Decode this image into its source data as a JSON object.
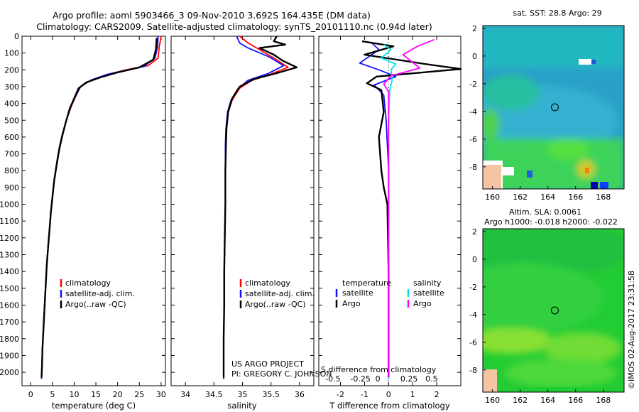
{
  "header": {
    "line1": "Argo profile: aoml 5903466_3 09-Nov-2010 3.692S 164.435E (DM data)",
    "line2": "Climatology: CARS2009. Satellite-adjusted climatology: synTS_20101110.nc (0.94d later)"
  },
  "colors": {
    "climatology": "#ff0000",
    "satellite": "#1010ff",
    "argo": "#000000",
    "sal_satellite": "#00e0f0",
    "sal_argo": "#ff00ff"
  },
  "chart_data": [
    {
      "id": "temperature",
      "type": "line",
      "xlabel": "temperature (deg C)",
      "ylabel": "",
      "xlim": [
        -2,
        31
      ],
      "ylim": [
        2080,
        0
      ],
      "xticks": [
        0,
        5,
        10,
        15,
        20,
        25,
        30
      ],
      "yticks": [
        0,
        100,
        200,
        300,
        400,
        500,
        600,
        700,
        800,
        900,
        1000,
        1100,
        1200,
        1300,
        1400,
        1500,
        1600,
        1700,
        1800,
        1900,
        2000
      ],
      "legend": [
        "climatology",
        "satellite-adj. clim.",
        "Argo(..raw -QC)"
      ],
      "series": [
        {
          "name": "climatology",
          "color": "red",
          "points": [
            [
              30,
              0
            ],
            [
              29.6,
              60
            ],
            [
              29.3,
              130
            ],
            [
              27,
              175
            ],
            [
              22,
              200
            ],
            [
              18,
              225
            ],
            [
              14,
              260
            ],
            [
              11.5,
              300
            ],
            [
              10.3,
              360
            ],
            [
              9.3,
              420
            ],
            [
              8.2,
              500
            ],
            [
              7.3,
              580
            ],
            [
              6.6,
              660
            ],
            [
              6.0,
              750
            ],
            [
              5.4,
              850
            ],
            [
              5.0,
              950
            ],
            [
              4.6,
              1050
            ],
            [
              4.3,
              1150
            ],
            [
              4.0,
              1250
            ],
            [
              3.7,
              1350
            ],
            [
              3.5,
              1450
            ],
            [
              3.3,
              1550
            ],
            [
              3.1,
              1650
            ],
            [
              2.9,
              1750
            ],
            [
              2.7,
              1850
            ],
            [
              2.6,
              1950
            ],
            [
              2.5,
              2040
            ]
          ]
        },
        {
          "name": "satellite-adj. clim.",
          "color": "blue",
          "points": [
            [
              29.3,
              0
            ],
            [
              29.2,
              60
            ],
            [
              28.6,
              130
            ],
            [
              26,
              180
            ],
            [
              21.5,
              205
            ],
            [
              17.5,
              228
            ],
            [
              13.8,
              262
            ],
            [
              11.4,
              302
            ],
            [
              10.2,
              362
            ],
            [
              9.2,
              422
            ],
            [
              8.2,
              502
            ],
            [
              7.3,
              582
            ],
            [
              6.6,
              662
            ],
            [
              6.0,
              752
            ],
            [
              5.4,
              852
            ],
            [
              5.0,
              952
            ],
            [
              4.6,
              1052
            ],
            [
              4.3,
              1152
            ],
            [
              4.0,
              1252
            ],
            [
              3.7,
              1352
            ],
            [
              3.5,
              1452
            ],
            [
              3.3,
              1552
            ],
            [
              3.1,
              1652
            ],
            [
              2.9,
              1752
            ],
            [
              2.7,
              1852
            ],
            [
              2.6,
              1952
            ],
            [
              2.5,
              2040
            ]
          ]
        },
        {
          "name": "Argo",
          "color": "black",
          "points": [
            [
              29.0,
              10
            ],
            [
              28.8,
              80
            ],
            [
              28.2,
              140
            ],
            [
              25,
              185
            ],
            [
              20,
              215
            ],
            [
              16,
              245
            ],
            [
              12.8,
              275
            ],
            [
              11.0,
              310
            ],
            [
              10.0,
              370
            ],
            [
              9.0,
              430
            ],
            [
              8.1,
              510
            ],
            [
              7.3,
              590
            ],
            [
              6.6,
              670
            ],
            [
              6.0,
              760
            ],
            [
              5.4,
              860
            ],
            [
              5.0,
              960
            ],
            [
              4.6,
              1060
            ],
            [
              4.3,
              1160
            ],
            [
              4.0,
              1260
            ],
            [
              3.7,
              1360
            ],
            [
              3.5,
              1460
            ],
            [
              3.3,
              1560
            ],
            [
              3.1,
              1660
            ],
            [
              2.9,
              1760
            ],
            [
              2.7,
              1860
            ],
            [
              2.6,
              1960
            ],
            [
              2.5,
              2030
            ]
          ]
        }
      ]
    },
    {
      "id": "salinity",
      "type": "line",
      "xlabel": "salinity",
      "ylabel": "",
      "xlim": [
        33.75,
        36.25
      ],
      "ylim": [
        2080,
        0
      ],
      "xticks": [
        34,
        34.5,
        35,
        35.5,
        36
      ],
      "legend": [
        "climatology",
        "satellite-adj. clim.",
        "Argo(..raw -QC)"
      ],
      "annotation": [
        "US ARGO PROJECT",
        "PI: GREGORY C. JOHNSON"
      ],
      "series": [
        {
          "name": "climatology",
          "color": "red",
          "points": [
            [
              34.95,
              0
            ],
            [
              35.1,
              40
            ],
            [
              35.3,
              80
            ],
            [
              35.55,
              130
            ],
            [
              35.8,
              185
            ],
            [
              35.5,
              225
            ],
            [
              35.15,
              265
            ],
            [
              34.95,
              310
            ],
            [
              34.82,
              380
            ],
            [
              34.75,
              450
            ],
            [
              34.72,
              550
            ],
            [
              34.71,
              650
            ],
            [
              34.7,
              800
            ],
            [
              34.7,
              1000
            ],
            [
              34.69,
              1200
            ],
            [
              34.68,
              1400
            ],
            [
              34.68,
              1600
            ],
            [
              34.67,
              1800
            ],
            [
              34.67,
              2040
            ]
          ]
        },
        {
          "name": "satellite-adj. clim.",
          "color": "blue",
          "points": [
            [
              34.9,
              0
            ],
            [
              34.95,
              40
            ],
            [
              35.1,
              70
            ],
            [
              35.45,
              120
            ],
            [
              35.72,
              175
            ],
            [
              35.45,
              222
            ],
            [
              35.1,
              262
            ],
            [
              34.93,
              310
            ],
            [
              34.8,
              380
            ],
            [
              34.74,
              450
            ],
            [
              34.71,
              550
            ],
            [
              34.7,
              650
            ],
            [
              34.7,
              800
            ],
            [
              34.7,
              1000
            ],
            [
              34.69,
              1200
            ],
            [
              34.68,
              1400
            ],
            [
              34.68,
              1600
            ],
            [
              34.67,
              1800
            ],
            [
              34.67,
              2040
            ]
          ]
        },
        {
          "name": "Argo",
          "color": "black",
          "points": [
            [
              35.6,
              0
            ],
            [
              35.55,
              30
            ],
            [
              35.75,
              50
            ],
            [
              35.3,
              70
            ],
            [
              35.55,
              110
            ],
            [
              35.7,
              145
            ],
            [
              35.95,
              185
            ],
            [
              35.6,
              220
            ],
            [
              35.2,
              255
            ],
            [
              34.95,
              300
            ],
            [
              34.82,
              370
            ],
            [
              34.75,
              450
            ],
            [
              34.72,
              550
            ],
            [
              34.71,
              650
            ],
            [
              34.7,
              800
            ],
            [
              34.7,
              1000
            ],
            [
              34.69,
              1200
            ],
            [
              34.68,
              1400
            ],
            [
              34.68,
              1600
            ],
            [
              34.67,
              1800
            ],
            [
              34.67,
              2030
            ]
          ]
        }
      ]
    },
    {
      "id": "difference",
      "type": "line",
      "xlabel": "T difference from climatology",
      "ylabel": "",
      "xlim": [
        -2.9,
        3.0
      ],
      "ylim": [
        2080,
        0
      ],
      "xticks": [
        -2,
        -1,
        0,
        1,
        2
      ],
      "secondary_xlabel": "S difference from climatology",
      "secondary_xticks": [
        "-0.5",
        "-0.25",
        "0",
        "0.25",
        "0.5"
      ],
      "legend": [
        "temperature",
        "satellite",
        "Argo",
        "salinity",
        "satellite",
        "Argo"
      ],
      "series": [
        {
          "name": "temperature satellite",
          "color": "blue",
          "points": [
            [
              -0.7,
              40
            ],
            [
              -0.4,
              80
            ],
            [
              -1.2,
              160
            ],
            [
              -0.4,
              200
            ],
            [
              0.3,
              240
            ],
            [
              -0.6,
              290
            ],
            [
              -0.2,
              350
            ],
            [
              -0.1,
              500
            ],
            [
              0.0,
              800
            ],
            [
              0.0,
              1200
            ],
            [
              0.0,
              1600
            ],
            [
              0.0,
              2040
            ]
          ]
        },
        {
          "name": "temperature Argo",
          "color": "black",
          "points": [
            [
              -1.1,
              30
            ],
            [
              0.2,
              60
            ],
            [
              -1.0,
              110
            ],
            [
              1.5,
              165
            ],
            [
              3.0,
              195
            ],
            [
              -0.5,
              240
            ],
            [
              -0.9,
              280
            ],
            [
              -0.3,
              320
            ],
            [
              -0.2,
              450
            ],
            [
              -0.4,
              600
            ],
            [
              -0.3,
              800
            ],
            [
              -0.2,
              900
            ],
            [
              -0.05,
              1000
            ],
            [
              0.0,
              1400
            ],
            [
              0.0,
              1800
            ],
            [
              0.0,
              2030
            ]
          ]
        },
        {
          "name": "salinity satellite",
          "color": "cyan",
          "points": [
            [
              -0.2,
              50
            ],
            [
              0.1,
              80
            ],
            [
              -0.3,
              130
            ],
            [
              0.3,
              165
            ],
            [
              0.1,
              200
            ],
            [
              0.15,
              260
            ],
            [
              0.05,
              320
            ],
            [
              0.0,
              500
            ],
            [
              0.0,
              800
            ],
            [
              0.0,
              1200
            ],
            [
              0.0,
              1600
            ],
            [
              0.0,
              2040
            ]
          ]
        },
        {
          "name": "salinity Argo",
          "color": "magenta",
          "points": [
            [
              1.9,
              20
            ],
            [
              1.2,
              60
            ],
            [
              0.6,
              110
            ],
            [
              1.3,
              190
            ],
            [
              0.1,
              235
            ],
            [
              -0.2,
              285
            ],
            [
              0.0,
              330
            ],
            [
              0.0,
              500
            ],
            [
              0.0,
              800
            ],
            [
              0.0,
              1200
            ],
            [
              0.0,
              1600
            ],
            [
              0.0,
              2030
            ]
          ]
        }
      ]
    },
    {
      "id": "sst_map",
      "type": "heatmap",
      "title": "sat. SST: 28.8 Argo: 29",
      "xticks": [
        "160",
        "162",
        "164",
        "166",
        "168"
      ],
      "yticks": [
        "2",
        "0",
        "-2",
        "-4",
        "-6",
        "-8"
      ],
      "xlim": [
        159.3,
        169.5
      ],
      "ylim": [
        -9.6,
        2.2
      ],
      "marker": [
        164.5,
        -3.7
      ]
    },
    {
      "id": "sla_map",
      "type": "heatmap",
      "title": "Altim. SLA: 0.0061",
      "subtitle": "Argo h1000: -0.018 h2000: -0.022",
      "xticks": [
        "160",
        "162",
        "164",
        "166",
        "168"
      ],
      "yticks": [
        "2",
        "0",
        "-2",
        "-4",
        "-6",
        "-8"
      ],
      "xlim": [
        159.3,
        169.5
      ],
      "ylim": [
        -9.6,
        2.2
      ],
      "marker": [
        164.5,
        -3.7
      ]
    }
  ],
  "credit": "©IMOS 02-Aug-2017 23:31:58"
}
